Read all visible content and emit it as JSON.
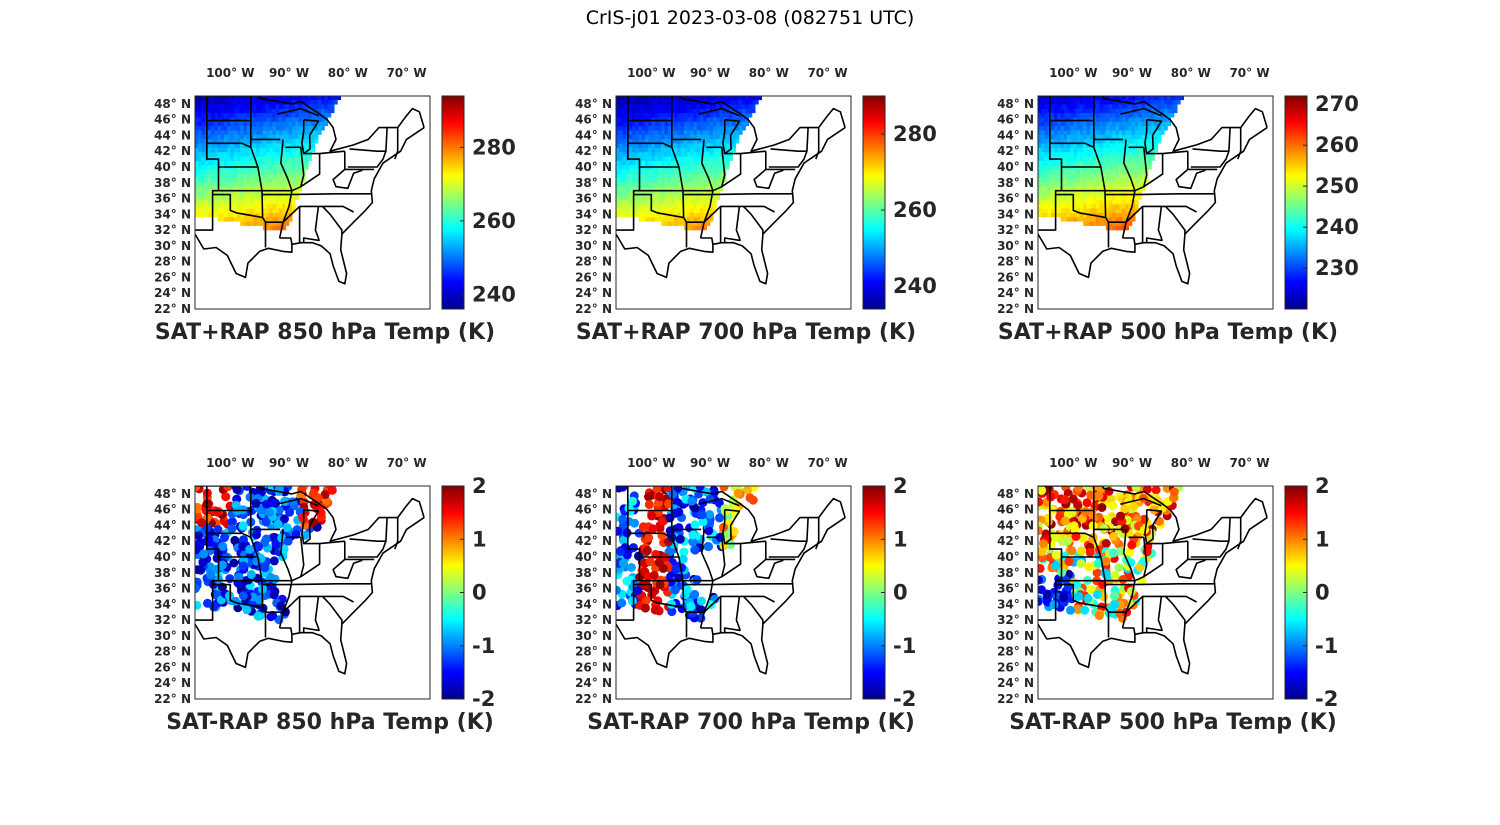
{
  "figure_title": "CrIS-j01 2023-03-08 (082751 UTC)",
  "lon_labels": [
    "100° W",
    "90° W",
    "80° W",
    "70° W"
  ],
  "lat_labels": [
    "48° N",
    "46° N",
    "44° N",
    "42° N",
    "40° N",
    "38° N",
    "36° N",
    "34° N",
    "32° N",
    "30° N",
    "28° N",
    "26° N",
    "24° N",
    "22° N"
  ],
  "colormap": [
    "#00008f",
    "#0000ff",
    "#0080ff",
    "#00ffff",
    "#80ff80",
    "#ffff00",
    "#ff8000",
    "#ff0000",
    "#800000"
  ],
  "map_extent": {
    "lon": [
      -106,
      -66
    ],
    "lat": [
      22,
      49
    ]
  },
  "panels": [
    {
      "id": "sat-rap-850",
      "title": "SAT+RAP 850 hPa Temp (K)",
      "kind": "field",
      "cbar_range": [
        236,
        294
      ],
      "cbar_ticks": [
        "240",
        "260",
        "280"
      ],
      "cbar_tick_values": [
        240,
        260,
        280
      ]
    },
    {
      "id": "sat-rap-700",
      "title": "SAT+RAP 700 hPa Temp (K)",
      "kind": "field",
      "cbar_range": [
        234,
        290
      ],
      "cbar_ticks": [
        "240",
        "260",
        "280"
      ],
      "cbar_tick_values": [
        240,
        260,
        280
      ]
    },
    {
      "id": "sat-rap-500",
      "title": "SAT+RAP 500 hPa Temp (K)",
      "kind": "field",
      "cbar_range": [
        220,
        272
      ],
      "cbar_ticks": [
        "230",
        "240",
        "250",
        "260",
        "270"
      ],
      "cbar_tick_values": [
        230,
        240,
        250,
        260,
        270
      ]
    },
    {
      "id": "sat-minus-rap-850",
      "title": "SAT-RAP 850 hPa Temp (K)",
      "kind": "diff",
      "cbar_range": [
        -2,
        2
      ],
      "cbar_ticks": [
        "-2",
        "-1",
        "0",
        "1",
        "2"
      ],
      "cbar_tick_values": [
        -2,
        -1,
        0,
        1,
        2
      ]
    },
    {
      "id": "sat-minus-rap-700",
      "title": "SAT-RAP 700 hPa Temp (K)",
      "kind": "diff",
      "cbar_range": [
        -2,
        2
      ],
      "cbar_ticks": [
        "-2",
        "-1",
        "0",
        "1",
        "2"
      ],
      "cbar_tick_values": [
        -2,
        -1,
        0,
        1,
        2
      ]
    },
    {
      "id": "sat-minus-rap-500",
      "title": "SAT-RAP 500 hPa Temp (K)",
      "kind": "diff",
      "cbar_range": [
        -2,
        2
      ],
      "cbar_ticks": [
        "-2",
        "-1",
        "0",
        "1",
        "2"
      ],
      "cbar_tick_values": [
        -2,
        -1,
        0,
        1,
        2
      ]
    }
  ]
}
